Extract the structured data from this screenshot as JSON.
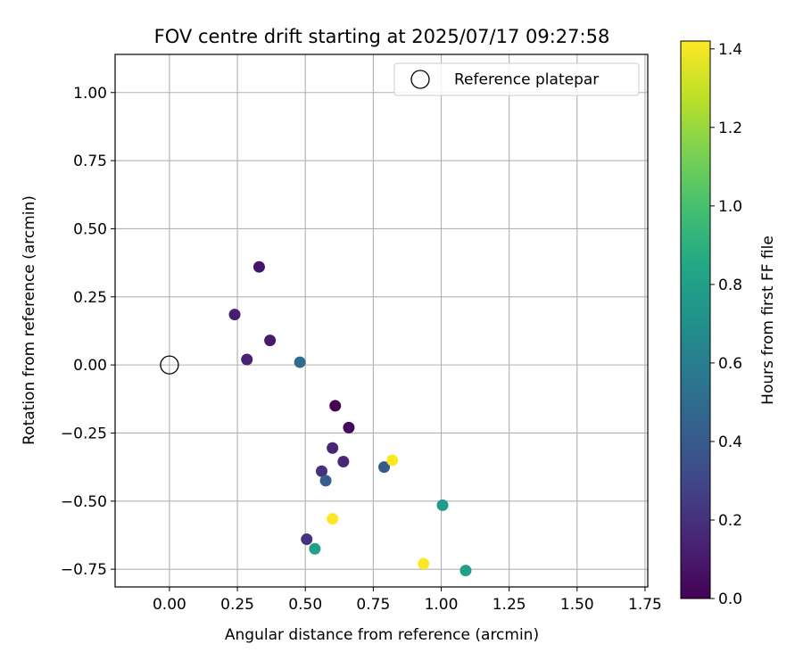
{
  "chart_data": {
    "type": "scatter",
    "title": "FOV centre drift starting at 2025/07/17 09:27:58",
    "xlabel": "Angular distance from reference (arcmin)",
    "ylabel": "Rotation from reference (arcmin)",
    "xlim": [
      -0.2,
      1.76
    ],
    "ylim": [
      -0.815,
      1.14
    ],
    "xticks": [
      0.0,
      0.25,
      0.5,
      0.75,
      1.0,
      1.25,
      1.5,
      1.75
    ],
    "xtick_labels": [
      "0.00",
      "0.25",
      "0.50",
      "0.75",
      "1.00",
      "1.25",
      "1.50",
      "1.75"
    ],
    "yticks": [
      -0.75,
      -0.5,
      -0.25,
      0.0,
      0.25,
      0.5,
      0.75,
      1.0
    ],
    "ytick_labels": [
      "−0.75",
      "−0.50",
      "−0.25",
      "0.00",
      "0.25",
      "0.50",
      "0.75",
      "1.00"
    ],
    "grid": true,
    "legend": {
      "position": "top-right",
      "entries": [
        "Reference platepar"
      ]
    },
    "reference_point": {
      "x": 0.0,
      "y": 0.0
    },
    "colorbar": {
      "label": "Hours from first FF file",
      "range": [
        0.0,
        1.42
      ],
      "ticks": [
        0.0,
        0.2,
        0.4,
        0.6,
        0.8,
        1.0,
        1.2,
        1.4
      ],
      "tick_labels": [
        "0.0",
        "0.2",
        "0.4",
        "0.6",
        "0.8",
        "1.0",
        "1.2",
        "1.4"
      ],
      "colormap": "viridis"
    },
    "points": [
      {
        "x": 0.61,
        "y": -0.15,
        "hours": 0.0
      },
      {
        "x": 0.66,
        "y": -0.23,
        "hours": 0.03
      },
      {
        "x": 0.33,
        "y": 0.36,
        "hours": 0.08
      },
      {
        "x": 0.37,
        "y": 0.09,
        "hours": 0.1
      },
      {
        "x": 0.24,
        "y": 0.185,
        "hours": 0.12
      },
      {
        "x": 0.285,
        "y": 0.02,
        "hours": 0.13
      },
      {
        "x": 0.6,
        "y": -0.305,
        "hours": 0.15
      },
      {
        "x": 0.64,
        "y": -0.355,
        "hours": 0.16
      },
      {
        "x": 0.56,
        "y": -0.39,
        "hours": 0.2
      },
      {
        "x": 0.505,
        "y": -0.64,
        "hours": 0.2
      },
      {
        "x": 0.79,
        "y": -0.375,
        "hours": 0.4
      },
      {
        "x": 0.575,
        "y": -0.425,
        "hours": 0.42
      },
      {
        "x": 0.48,
        "y": 0.01,
        "hours": 0.5
      },
      {
        "x": 1.005,
        "y": -0.515,
        "hours": 0.78
      },
      {
        "x": 0.535,
        "y": -0.675,
        "hours": 0.8
      },
      {
        "x": 1.09,
        "y": -0.755,
        "hours": 0.8
      },
      {
        "x": 0.82,
        "y": -0.35,
        "hours": 1.42
      },
      {
        "x": 0.6,
        "y": -0.565,
        "hours": 1.42
      },
      {
        "x": 0.935,
        "y": -0.73,
        "hours": 1.42
      }
    ]
  }
}
